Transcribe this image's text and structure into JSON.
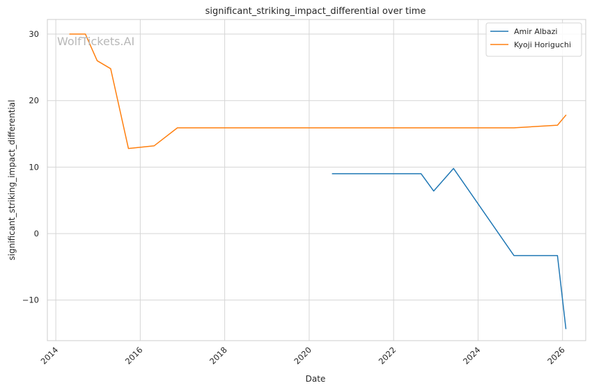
{
  "chart_data": {
    "type": "line",
    "title": "significant_striking_impact_differential over time",
    "xlabel": "Date",
    "ylabel": "significant_striking_impact_differential",
    "watermark": "WolfTickets.AI",
    "xlim": [
      2013.8,
      2026.55
    ],
    "ylim": [
      -16.1,
      32.2
    ],
    "x_ticks": [
      2014,
      2016,
      2018,
      2020,
      2022,
      2024,
      2026
    ],
    "x_tick_labels": [
      "2014",
      "2016",
      "2018",
      "2020",
      "2022",
      "2024",
      "2026"
    ],
    "y_ticks": [
      -10,
      0,
      10,
      20,
      30
    ],
    "y_tick_labels": [
      "−10",
      "0",
      "10",
      "20",
      "30"
    ],
    "grid": true,
    "legend_position": "top-right",
    "series": [
      {
        "name": "Amir Albazi",
        "color": "#1f77b4",
        "points": [
          [
            2020.55,
            9.0
          ],
          [
            2022.65,
            9.0
          ],
          [
            2022.95,
            6.4
          ],
          [
            2023.42,
            9.8
          ],
          [
            2024.85,
            -3.3
          ],
          [
            2025.88,
            -3.3
          ],
          [
            2026.08,
            -14.3
          ]
        ]
      },
      {
        "name": "Kyoji Horiguchi",
        "color": "#ff7f0e",
        "points": [
          [
            2014.33,
            30.0
          ],
          [
            2014.7,
            30.0
          ],
          [
            2014.98,
            26.0
          ],
          [
            2015.3,
            24.8
          ],
          [
            2015.72,
            12.8
          ],
          [
            2016.33,
            13.2
          ],
          [
            2016.88,
            15.9
          ],
          [
            2024.85,
            15.9
          ],
          [
            2025.88,
            16.3
          ],
          [
            2026.08,
            17.8
          ]
        ]
      }
    ]
  }
}
